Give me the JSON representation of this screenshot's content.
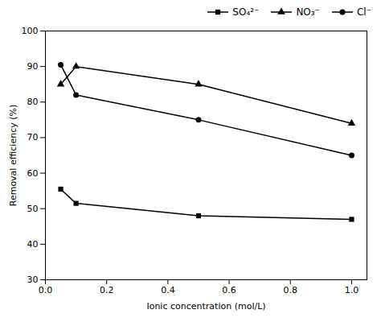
{
  "chart_data": {
    "type": "line",
    "x": [
      0.05,
      0.1,
      0.5,
      1.0
    ],
    "series": [
      {
        "name": "SO₄²⁻",
        "color": "#000000",
        "marker": "square",
        "values": [
          55.5,
          51.5,
          48.0,
          47.0
        ]
      },
      {
        "name": "NO₃⁻",
        "color": "#000000",
        "marker": "triangle",
        "values": [
          85.0,
          90.0,
          85.0,
          74.0
        ]
      },
      {
        "name": "Cl⁻",
        "color": "#000000",
        "marker": "circle",
        "values": [
          90.5,
          82.0,
          75.0,
          65.0
        ]
      }
    ],
    "xlabel": "Ionic concentration (mol/L)",
    "ylabel": "Removal efficiency (%)",
    "xlim": [
      0.0,
      1.05
    ],
    "xticks": [
      {
        "value": 0.0,
        "label": "0.0"
      },
      0.2,
      0.4,
      0.6,
      0.8,
      {
        "value": 1.0,
        "label": "1.0"
      }
    ],
    "ylim": [
      30,
      100
    ],
    "yticks": [
      30,
      40,
      50,
      60,
      70,
      80,
      90,
      100
    ],
    "grid": false,
    "legend": "upper right"
  }
}
